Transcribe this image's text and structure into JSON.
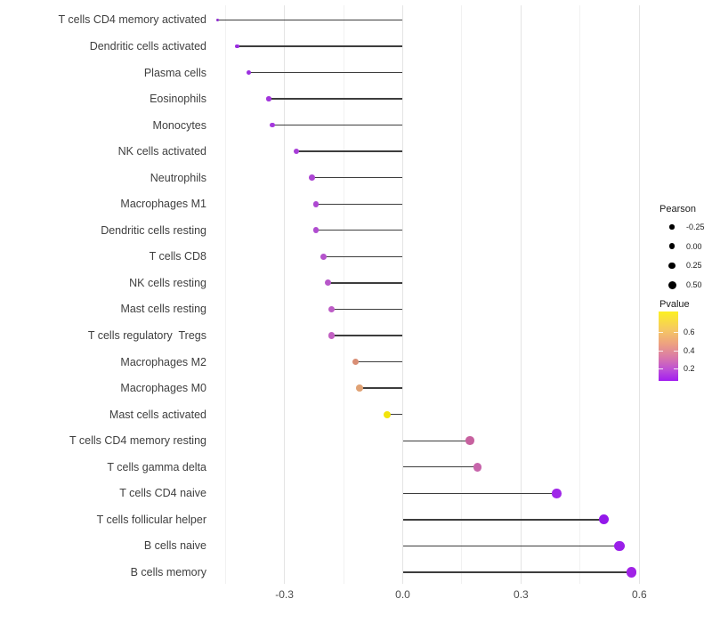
{
  "chart_data": {
    "type": "lollipop",
    "orientation": "horizontal",
    "title": "",
    "xlabel": "",
    "ylabel": "",
    "xlim": [
      -0.48,
      0.63
    ],
    "x_ticks": [
      {
        "label": "-0.3",
        "value": -0.3
      },
      {
        "label": "0.0",
        "value": 0.0
      },
      {
        "label": "0.3",
        "value": 0.3
      },
      {
        "label": "0.6",
        "value": 0.6
      }
    ],
    "grid_values_minor": [
      -0.45,
      -0.15,
      0.15,
      0.45
    ],
    "grid_values_major": [
      -0.3,
      0.0,
      0.3,
      0.6
    ],
    "points": [
      {
        "label": "T cells CD4 memory activated",
        "pearson": -0.47,
        "color": "#8d2ace"
      },
      {
        "label": "Dendritic cells activated",
        "pearson": -0.42,
        "color": "#9a2ce0"
      },
      {
        "label": "Plasma cells",
        "pearson": -0.39,
        "color": "#9c30e0"
      },
      {
        "label": "Eosinophils",
        "pearson": -0.34,
        "color": "#a236dc"
      },
      {
        "label": "Monocytes",
        "pearson": -0.33,
        "color": "#a538dd"
      },
      {
        "label": "NK cells activated",
        "pearson": -0.27,
        "color": "#a83fd8"
      },
      {
        "label": "Neutrophils",
        "pearson": -0.23,
        "color": "#ad46d4"
      },
      {
        "label": "Macrophages M1",
        "pearson": -0.22,
        "color": "#ae48d2"
      },
      {
        "label": "Dendritic cells resting",
        "pearson": -0.22,
        "color": "#b04cd0"
      },
      {
        "label": "T cells CD8",
        "pearson": -0.2,
        "color": "#b553cc"
      },
      {
        "label": "NK cells resting",
        "pearson": -0.19,
        "color": "#b757c9"
      },
      {
        "label": "Mast cells resting",
        "pearson": -0.18,
        "color": "#bd5cc6"
      },
      {
        "label": "T cells regulatory  Tregs",
        "pearson": -0.18,
        "color": "#c260c2"
      },
      {
        "label": "Macrophages M2",
        "pearson": -0.12,
        "color": "#d98e75"
      },
      {
        "label": "Macrophages M0",
        "pearson": -0.11,
        "color": "#e0a275"
      },
      {
        "label": "Mast cells activated",
        "pearson": -0.04,
        "color": "#f2e40c"
      },
      {
        "label": "T cells CD4 memory resting",
        "pearson": 0.17,
        "color": "#c7619f"
      },
      {
        "label": "T cells gamma delta",
        "pearson": 0.19,
        "color": "#c765ab"
      },
      {
        "label": "T cells CD4 naive",
        "pearson": 0.39,
        "color": "#a028e8"
      },
      {
        "label": "T cells follicular helper",
        "pearson": 0.51,
        "color": "#9318ea"
      },
      {
        "label": "B cells naive",
        "pearson": 0.55,
        "color": "#9a1fe9"
      },
      {
        "label": "B cells memory",
        "pearson": 0.58,
        "color": "#a023e6"
      }
    ],
    "legend_size": {
      "title": "Pearson",
      "entries": [
        {
          "label": "-0.25",
          "value": -0.25
        },
        {
          "label": "0.00",
          "value": 0.0
        },
        {
          "label": "0.25",
          "value": 0.25
        },
        {
          "label": "0.50",
          "value": 0.5
        }
      ]
    },
    "legend_color": {
      "title": "Pvalue",
      "entries": [
        {
          "label": "0.6",
          "value": 0.6
        },
        {
          "label": "0.4",
          "value": 0.4
        },
        {
          "label": "0.2",
          "value": 0.2
        }
      ],
      "gradient_top_color": "#fcf021",
      "gradient_bottom_color": "#a21df0"
    }
  }
}
